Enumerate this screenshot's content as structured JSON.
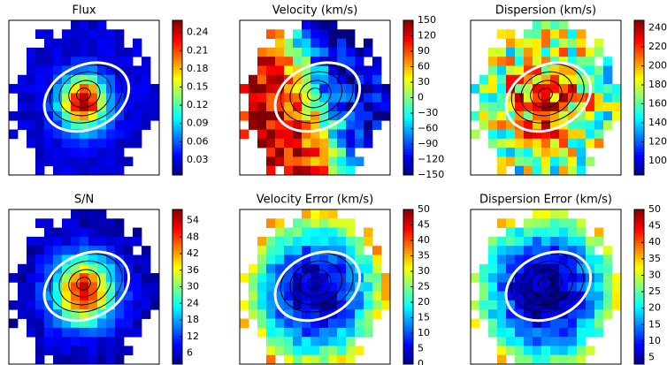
{
  "chart_data": [
    {
      "type": "heatmap",
      "title": "Flux",
      "clim": [
        0.005,
        0.26
      ],
      "colormap": "jet",
      "cticks": [
        0.03,
        0.06,
        0.09,
        0.12,
        0.15,
        0.18,
        0.21,
        0.24
      ]
    },
    {
      "type": "heatmap",
      "title": "Velocity (km/s)",
      "clim": [
        -150,
        150
      ],
      "colormap": "jet",
      "cticks": [
        {
          "value": -150,
          "label": "−150"
        },
        {
          "value": -120,
          "label": "−120"
        },
        {
          "value": -90,
          "label": "−90"
        },
        {
          "value": -60,
          "label": "−60"
        },
        {
          "value": -30,
          "label": "−30"
        },
        0,
        30,
        60,
        90,
        120,
        150
      ]
    },
    {
      "type": "heatmap",
      "title": "Dispersion (km/s)",
      "clim": [
        85,
        248
      ],
      "colormap": "jet",
      "cticks": [
        100,
        120,
        140,
        160,
        180,
        200,
        220,
        240
      ]
    },
    {
      "type": "heatmap",
      "title": "S/N",
      "clim": [
        2,
        58
      ],
      "colormap": "jet",
      "cticks": [
        6,
        12,
        18,
        24,
        30,
        36,
        42,
        48,
        54
      ]
    },
    {
      "type": "heatmap",
      "title": "Velocity Error (km/s)",
      "clim": [
        0,
        50
      ],
      "colormap": "jet",
      "cticks": [
        0,
        5,
        10,
        15,
        20,
        25,
        30,
        35,
        40,
        45,
        50
      ]
    },
    {
      "type": "heatmap",
      "title": "Dispersion Error (km/s)",
      "clim": [
        3,
        50
      ],
      "colormap": "jet",
      "cticks": [
        5,
        10,
        15,
        20,
        25,
        30,
        35,
        40,
        45,
        50
      ]
    }
  ]
}
